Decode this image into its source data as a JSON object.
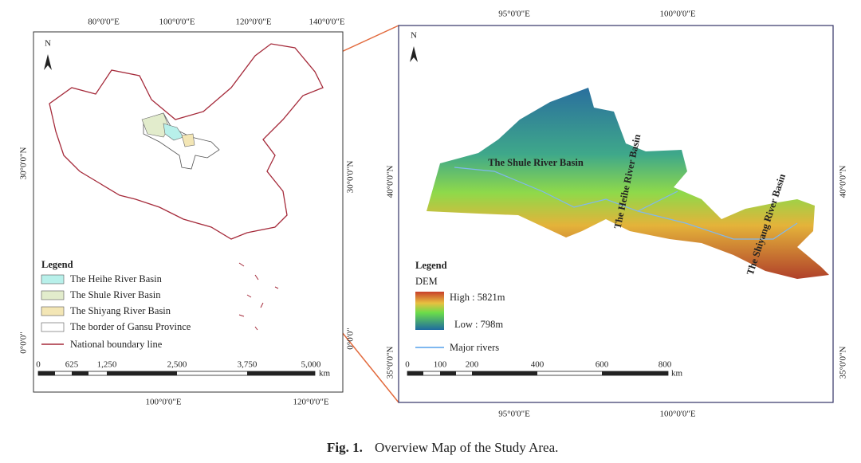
{
  "left_map": {
    "top_labels": [
      "80°0'0\"E",
      "100°0'0\"E",
      "120°0'0\"E",
      "140°0'0\"E"
    ],
    "bottom_labels": [
      "100°0'0\"E",
      "120°0'0\"E"
    ],
    "left_labels": [
      "30°0'0\"N",
      "0°0'0\""
    ],
    "right_labels": [
      "30°0'0\"N",
      "0°0'0\""
    ],
    "north": "N",
    "legend": {
      "title": "Legend",
      "items": [
        "The Heihe River Basin",
        "The Shule River Basin",
        "The Shiyang River Basin",
        "The border of Gansu Province",
        "National boundary line"
      ]
    },
    "scale": {
      "ticks": [
        "0",
        "625",
        "1,250",
        "2,500",
        "3,750",
        "5,000"
      ],
      "unit": "km"
    }
  },
  "right_map": {
    "top_labels": [
      "95°0'0\"E",
      "100°0'0\"E"
    ],
    "bottom_labels": [
      "95°0'0\"E",
      "100°0'0\"E"
    ],
    "left_labels": [
      "40°0'0\"N",
      "35°0'0\"N"
    ],
    "right_labels": [
      "40°0'0\"N",
      "35°0'0\"N"
    ],
    "north": "N",
    "basin_labels": [
      "The Shule River Basin",
      "The Heihe River Basin",
      "The Shiyang River Basin"
    ],
    "legend": {
      "title": "Legend",
      "dem": "DEM",
      "high": "High : 5821m",
      "low": "Low : 798m",
      "rivers": "Major rivers"
    },
    "scale": {
      "ticks": [
        "0",
        "100",
        "200",
        "400",
        "600",
        "800"
      ],
      "unit": "km"
    }
  },
  "caption": {
    "label": "Fig. 1.",
    "text": "Overview Map of the Study Area."
  }
}
